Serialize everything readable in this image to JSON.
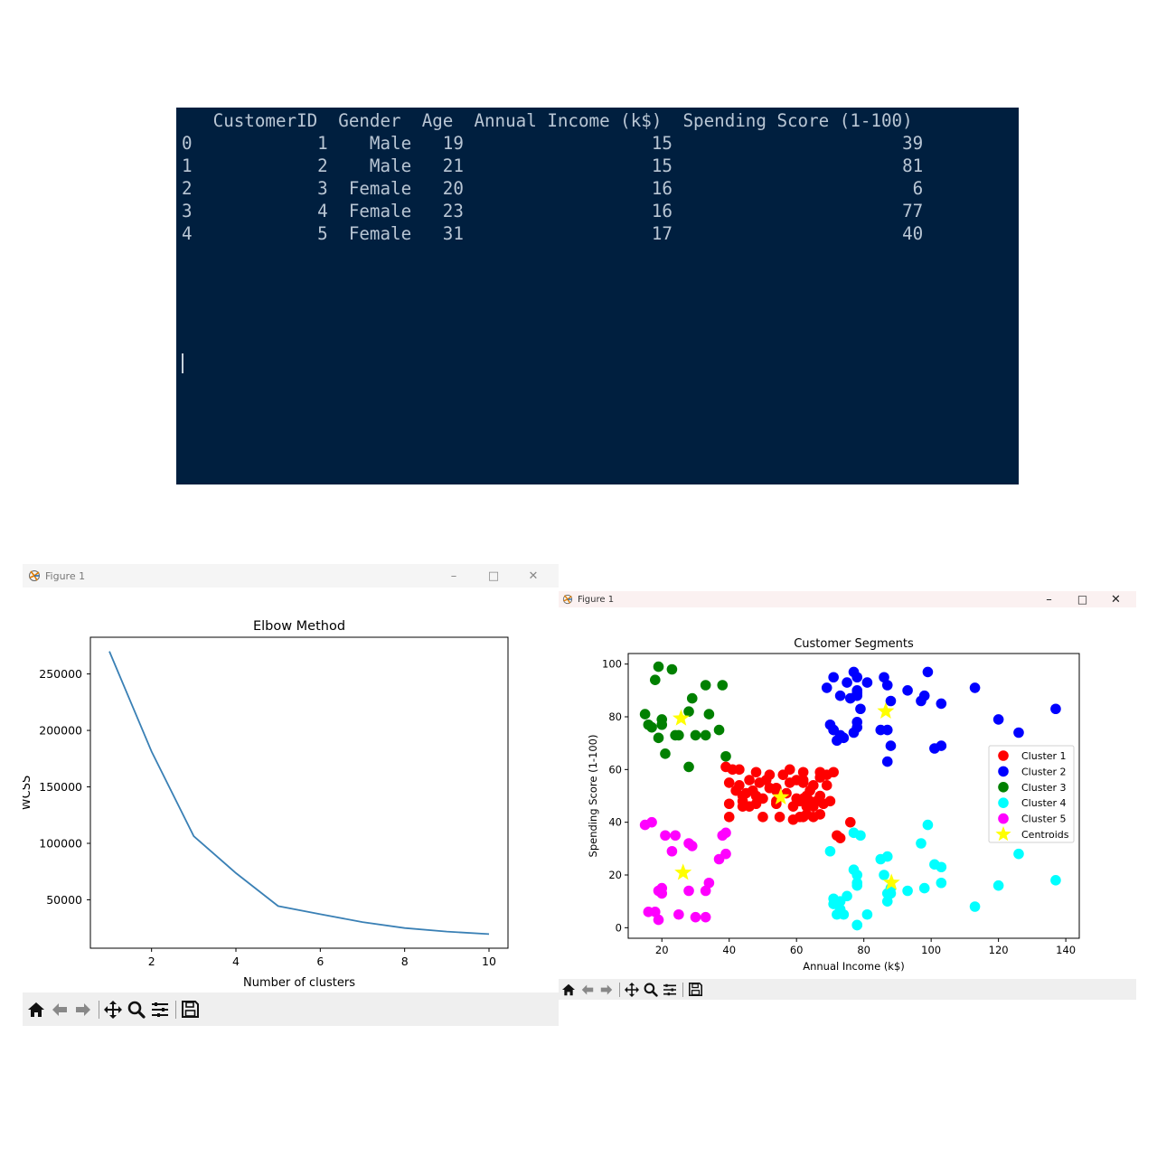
{
  "terminal": {
    "header": "CustomerID  Gender  Age  Annual Income (k$)  Spending Score (1-100)",
    "columns": [
      "CustomerID",
      "Gender",
      "Age",
      "Annual Income (k$)",
      "Spending Score (1-100)"
    ],
    "rows": [
      {
        "index": "0",
        "id": "1",
        "gender": "Male",
        "age": "19",
        "income": "15",
        "score": "39"
      },
      {
        "index": "1",
        "id": "2",
        "gender": "Male",
        "age": "21",
        "income": "15",
        "score": "81"
      },
      {
        "index": "2",
        "id": "3",
        "gender": "Female",
        "age": "20",
        "income": "16",
        "score": "6"
      },
      {
        "index": "3",
        "id": "4",
        "gender": "Female",
        "age": "23",
        "income": "16",
        "score": "77"
      },
      {
        "index": "4",
        "id": "5",
        "gender": "Female",
        "age": "31",
        "income": "17",
        "score": "40"
      }
    ],
    "bg_color": "#001f3f",
    "text_color": "#b9c6d4"
  },
  "window_left": {
    "title": "Figure 1",
    "icons": [
      "minimize-icon",
      "maximize-icon",
      "close-icon"
    ],
    "toolbar_icons": [
      "home-icon",
      "back-arrow-icon",
      "forward-arrow-icon",
      "pan-icon",
      "zoom-icon",
      "configure-subplots-icon",
      "save-icon"
    ]
  },
  "window_right": {
    "title": "Figure 1",
    "icons": [
      "minimize-icon",
      "maximize-icon",
      "close-icon"
    ],
    "toolbar_icons": [
      "home-icon",
      "back-arrow-icon",
      "forward-arrow-icon",
      "pan-icon",
      "zoom-icon",
      "configure-subplots-icon",
      "save-icon"
    ]
  },
  "chart_data": [
    {
      "type": "line",
      "title": "Elbow Method",
      "xlabel": "Number of clusters",
      "ylabel": "WCSS",
      "x": [
        1,
        2,
        3,
        4,
        5,
        6,
        7,
        8,
        9,
        10
      ],
      "series": [
        {
          "values": [
            269981,
            181363,
            106348,
            73679,
            44448,
            37233,
            30260,
            25011,
            21818,
            19657
          ]
        }
      ],
      "xlim": [
        0.55,
        10.45
      ],
      "ylim": [
        7140,
        282500
      ],
      "xticks": [
        2,
        4,
        6,
        8,
        10
      ],
      "yticks": [
        50000,
        100000,
        150000,
        200000,
        250000
      ],
      "line_color": "#3a80b5",
      "grid": false
    },
    {
      "type": "scatter",
      "title": "Customer Segments",
      "xlabel": "Annual Income (k$)",
      "ylabel": "Spending Score (1-100)",
      "xlim": [
        10,
        144
      ],
      "ylim": [
        -4,
        104
      ],
      "xticks": [
        20,
        40,
        60,
        80,
        100,
        120,
        140
      ],
      "yticks": [
        0,
        20,
        40,
        60,
        80,
        100
      ],
      "legend_position": "center-right",
      "grid": false,
      "series": [
        {
          "name": "Cluster 1",
          "color": "#ff0000",
          "points": [
            [
              39,
              61
            ],
            [
              40,
              55
            ],
            [
              40,
              47
            ],
            [
              40,
              42
            ],
            [
              41,
              60
            ],
            [
              42,
              52
            ],
            [
              43,
              60
            ],
            [
              43,
              54
            ],
            [
              44,
              50
            ],
            [
              44,
              46
            ],
            [
              45,
              51
            ],
            [
              46,
              46
            ],
            [
              46,
              56
            ],
            [
              47,
              52
            ],
            [
              48,
              59
            ],
            [
              48,
              47
            ],
            [
              48,
              50
            ],
            [
              49,
              55
            ],
            [
              50,
              42
            ],
            [
              50,
              49
            ],
            [
              51,
              56
            ],
            [
              52,
              53
            ],
            [
              54,
              47
            ],
            [
              54,
              48
            ],
            [
              54,
              53
            ],
            [
              54,
              52
            ],
            [
              55,
              42
            ],
            [
              57,
              51
            ],
            [
              58,
              55
            ],
            [
              59,
              41
            ],
            [
              59,
              46
            ],
            [
              60,
              49
            ],
            [
              60,
              56
            ],
            [
              61,
              42
            ],
            [
              61,
              48
            ],
            [
              62,
              59
            ],
            [
              62,
              55
            ],
            [
              62,
              49
            ],
            [
              62,
              56
            ],
            [
              62,
              42
            ],
            [
              63,
              50
            ],
            [
              63,
              46
            ],
            [
              63,
              43
            ],
            [
              64,
              48
            ],
            [
              64,
              52
            ],
            [
              65,
              54
            ],
            [
              65,
              42
            ],
            [
              65,
              46
            ],
            [
              66,
              48
            ],
            [
              67,
              50
            ],
            [
              67,
              43
            ],
            [
              67,
              59
            ],
            [
              67,
              57
            ],
            [
              68,
              47
            ],
            [
              69,
              54
            ],
            [
              69,
              58
            ],
            [
              70,
              48
            ],
            [
              71,
              59
            ],
            [
              73,
              34
            ],
            [
              76,
              40
            ],
            [
              72,
              35
            ],
            [
              56,
              58
            ],
            [
              58,
              60
            ],
            [
              44,
              48
            ],
            [
              52,
              58
            ]
          ]
        },
        {
          "name": "Cluster 2",
          "color": "#0000ff",
          "points": [
            [
              69,
              91
            ],
            [
              70,
              77
            ],
            [
              71,
              95
            ],
            [
              71,
              75
            ],
            [
              71,
              75
            ],
            [
              72,
              71
            ],
            [
              73,
              88
            ],
            [
              73,
              73
            ],
            [
              74,
              72
            ],
            [
              75,
              93
            ],
            [
              76,
              87
            ],
            [
              77,
              97
            ],
            [
              77,
              74
            ],
            [
              78,
              90
            ],
            [
              78,
              88
            ],
            [
              78,
              76
            ],
            [
              78,
              89
            ],
            [
              78,
              78
            ],
            [
              79,
              83
            ],
            [
              81,
              93
            ],
            [
              85,
              75
            ],
            [
              86,
              95
            ],
            [
              87,
              63
            ],
            [
              87,
              75
            ],
            [
              87,
              92
            ],
            [
              88,
              86
            ],
            [
              88,
              69
            ],
            [
              93,
              90
            ],
            [
              97,
              86
            ],
            [
              98,
              88
            ],
            [
              99,
              97
            ],
            [
              101,
              68
            ],
            [
              103,
              85
            ],
            [
              103,
              69
            ],
            [
              113,
              91
            ],
            [
              120,
              79
            ],
            [
              126,
              74
            ],
            [
              137,
              83
            ],
            [
              78,
              95
            ]
          ]
        },
        {
          "name": "Cluster 3",
          "color": "#008000",
          "points": [
            [
              15,
              81
            ],
            [
              16,
              77
            ],
            [
              17,
              76
            ],
            [
              18,
              94
            ],
            [
              19,
              72
            ],
            [
              19,
              99
            ],
            [
              20,
              77
            ],
            [
              20,
              79
            ],
            [
              21,
              66
            ],
            [
              23,
              98
            ],
            [
              24,
              73
            ],
            [
              25,
              73
            ],
            [
              28,
              82
            ],
            [
              28,
              61
            ],
            [
              29,
              87
            ],
            [
              30,
              73
            ],
            [
              33,
              73
            ],
            [
              33,
              92
            ],
            [
              34,
              81
            ],
            [
              37,
              75
            ],
            [
              38,
              92
            ],
            [
              39,
              65
            ]
          ]
        },
        {
          "name": "Cluster 4",
          "color": "#00ffff",
          "points": [
            [
              70,
              29
            ],
            [
              71,
              11
            ],
            [
              71,
              9
            ],
            [
              72,
              5
            ],
            [
              73,
              7
            ],
            [
              73,
              10
            ],
            [
              74,
              5
            ],
            [
              75,
              12
            ],
            [
              77,
              36
            ],
            [
              77,
              22
            ],
            [
              78,
              17
            ],
            [
              78,
              20
            ],
            [
              78,
              16
            ],
            [
              78,
              1
            ],
            [
              78,
              1
            ],
            [
              79,
              35
            ],
            [
              81,
              5
            ],
            [
              85,
              26
            ],
            [
              86,
              20
            ],
            [
              87,
              27
            ],
            [
              87,
              13
            ],
            [
              87,
              10
            ],
            [
              88,
              13
            ],
            [
              88,
              15
            ],
            [
              93,
              14
            ],
            [
              97,
              32
            ],
            [
              98,
              15
            ],
            [
              99,
              39
            ],
            [
              101,
              24
            ],
            [
              103,
              17
            ],
            [
              103,
              23
            ],
            [
              113,
              8
            ],
            [
              120,
              16
            ],
            [
              126,
              28
            ],
            [
              137,
              18
            ]
          ]
        },
        {
          "name": "Cluster 5",
          "color": "#ff00ff",
          "points": [
            [
              15,
              39
            ],
            [
              16,
              6
            ],
            [
              17,
              40
            ],
            [
              18,
              6
            ],
            [
              19,
              3
            ],
            [
              19,
              14
            ],
            [
              20,
              15
            ],
            [
              20,
              13
            ],
            [
              21,
              35
            ],
            [
              23,
              29
            ],
            [
              24,
              35
            ],
            [
              25,
              5
            ],
            [
              28,
              14
            ],
            [
              28,
              32
            ],
            [
              29,
              31
            ],
            [
              30,
              4
            ],
            [
              33,
              4
            ],
            [
              33,
              14
            ],
            [
              34,
              17
            ],
            [
              37,
              26
            ],
            [
              38,
              35
            ],
            [
              39,
              28
            ],
            [
              39,
              36
            ]
          ]
        },
        {
          "name": "Centroids",
          "color": "#ffff00",
          "marker": "star",
          "points": [
            [
              55.3,
              49.5
            ],
            [
              86.5,
              82.1
            ],
            [
              25.7,
              79.4
            ],
            [
              88.2,
              17.1
            ],
            [
              26.3,
              20.9
            ]
          ]
        }
      ]
    }
  ]
}
